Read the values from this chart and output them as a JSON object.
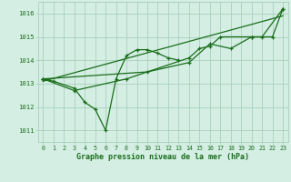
{
  "background_color": "#d4eee4",
  "grid_color": "#aacfbc",
  "line_color": "#1a6e1a",
  "text_color": "#1a6e1a",
  "xlabel": "Graphe pression niveau de la mer (hPa)",
  "x_ticks": [
    0,
    1,
    2,
    3,
    4,
    5,
    6,
    7,
    8,
    9,
    10,
    11,
    12,
    13,
    14,
    15,
    16,
    17,
    18,
    19,
    20,
    21,
    22,
    23
  ],
  "xlim": [
    -0.5,
    23.5
  ],
  "ylim": [
    1010.5,
    1016.5
  ],
  "y_ticks": [
    1011,
    1012,
    1013,
    1014,
    1015,
    1016
  ],
  "series1_x": [
    0,
    1,
    3,
    4,
    5,
    6,
    7,
    8,
    9,
    10,
    11,
    12,
    13
  ],
  "series1_y": [
    1013.2,
    1013.1,
    1012.8,
    1012.2,
    1011.9,
    1011.0,
    1013.2,
    1014.2,
    1014.45,
    1014.45,
    1014.3,
    1014.1,
    1014.0
  ],
  "series2_x": [
    0,
    3,
    8,
    14,
    15,
    16,
    17,
    20,
    21,
    23
  ],
  "series2_y": [
    1013.2,
    1012.7,
    1013.2,
    1014.1,
    1014.5,
    1014.6,
    1015.0,
    1015.0,
    1015.0,
    1016.2
  ],
  "series3_x": [
    0,
    10,
    14,
    16,
    18,
    20,
    22,
    23
  ],
  "series3_y": [
    1013.2,
    1013.5,
    1013.9,
    1014.7,
    1014.5,
    1015.0,
    1015.0,
    1016.2
  ],
  "trend_x": [
    0,
    23
  ],
  "trend_y": [
    1013.1,
    1015.9
  ]
}
